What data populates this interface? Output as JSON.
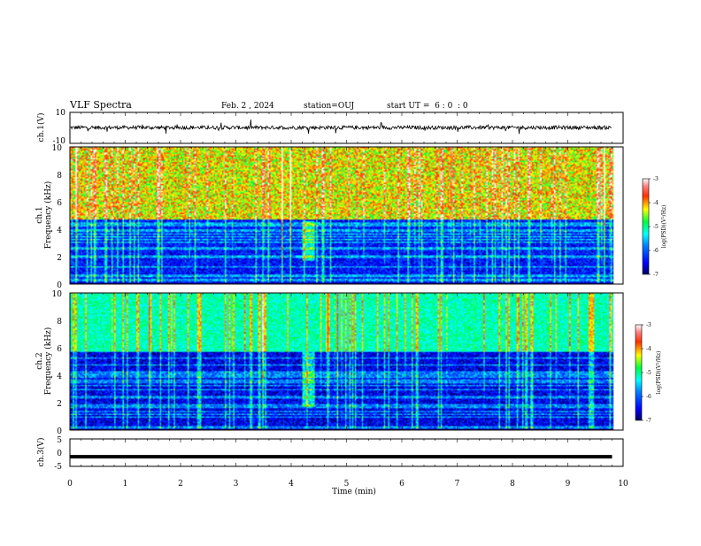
{
  "header": {
    "title": "VLF Spectra",
    "date": "Feb. 2 , 2024",
    "station": "station=OUJ",
    "start_ut": "start UT =  6 : 0  : 0"
  },
  "chart_data": [
    {
      "type": "line",
      "ylabel": "ch.1(V)",
      "ylim": [
        -10,
        10
      ],
      "yticks": [
        "10",
        "-10"
      ],
      "description_values": "noisy waveform centered near 0 V with spikes",
      "x_range_min": [
        0,
        9.8
      ]
    },
    {
      "type": "heatmap",
      "ylabel_line1": "ch.1",
      "ylabel_line2": "Frequency (kHz)",
      "ylim": [
        0,
        10
      ],
      "yticks": [
        "0",
        "2",
        "4",
        "6",
        "8",
        "10"
      ],
      "colorbar": {
        "label": "log(PSD)(V²/Hz)",
        "range": [
          -7,
          -3
        ],
        "ticks": [
          "-3",
          "-4",
          "-5",
          "-6",
          "-7"
        ]
      }
    },
    {
      "type": "heatmap",
      "ylabel_line1": "ch.2",
      "ylabel_line2": "Frequency (kHz)",
      "ylim": [
        0,
        10
      ],
      "yticks": [
        "0",
        "2",
        "4",
        "6",
        "8",
        "10"
      ],
      "colorbar": {
        "label": "log(PSD)(V²/Hz)",
        "range": [
          -7,
          -3
        ],
        "ticks": [
          "-3",
          "-4",
          "-5",
          "-6",
          "-7"
        ]
      }
    },
    {
      "type": "line",
      "ylabel": "ch.3(V)",
      "ylim": [
        -5,
        5
      ],
      "yticks": [
        "5",
        "0",
        "-5"
      ],
      "value_constant": -1.5
    }
  ],
  "xaxis": {
    "label": "Time (min)",
    "range": [
      0,
      10
    ],
    "ticks": [
      "0",
      "1",
      "2",
      "3",
      "4",
      "5",
      "6",
      "7",
      "8",
      "9",
      "10"
    ]
  },
  "colors": {
    "spectrogram_scale": [
      "#00007a",
      "#0000ff",
      "#0080ff",
      "#00ffff",
      "#00ff66",
      "#80ff00",
      "#ffff00",
      "#ff8000",
      "#ff0000",
      "#ffffff"
    ]
  }
}
